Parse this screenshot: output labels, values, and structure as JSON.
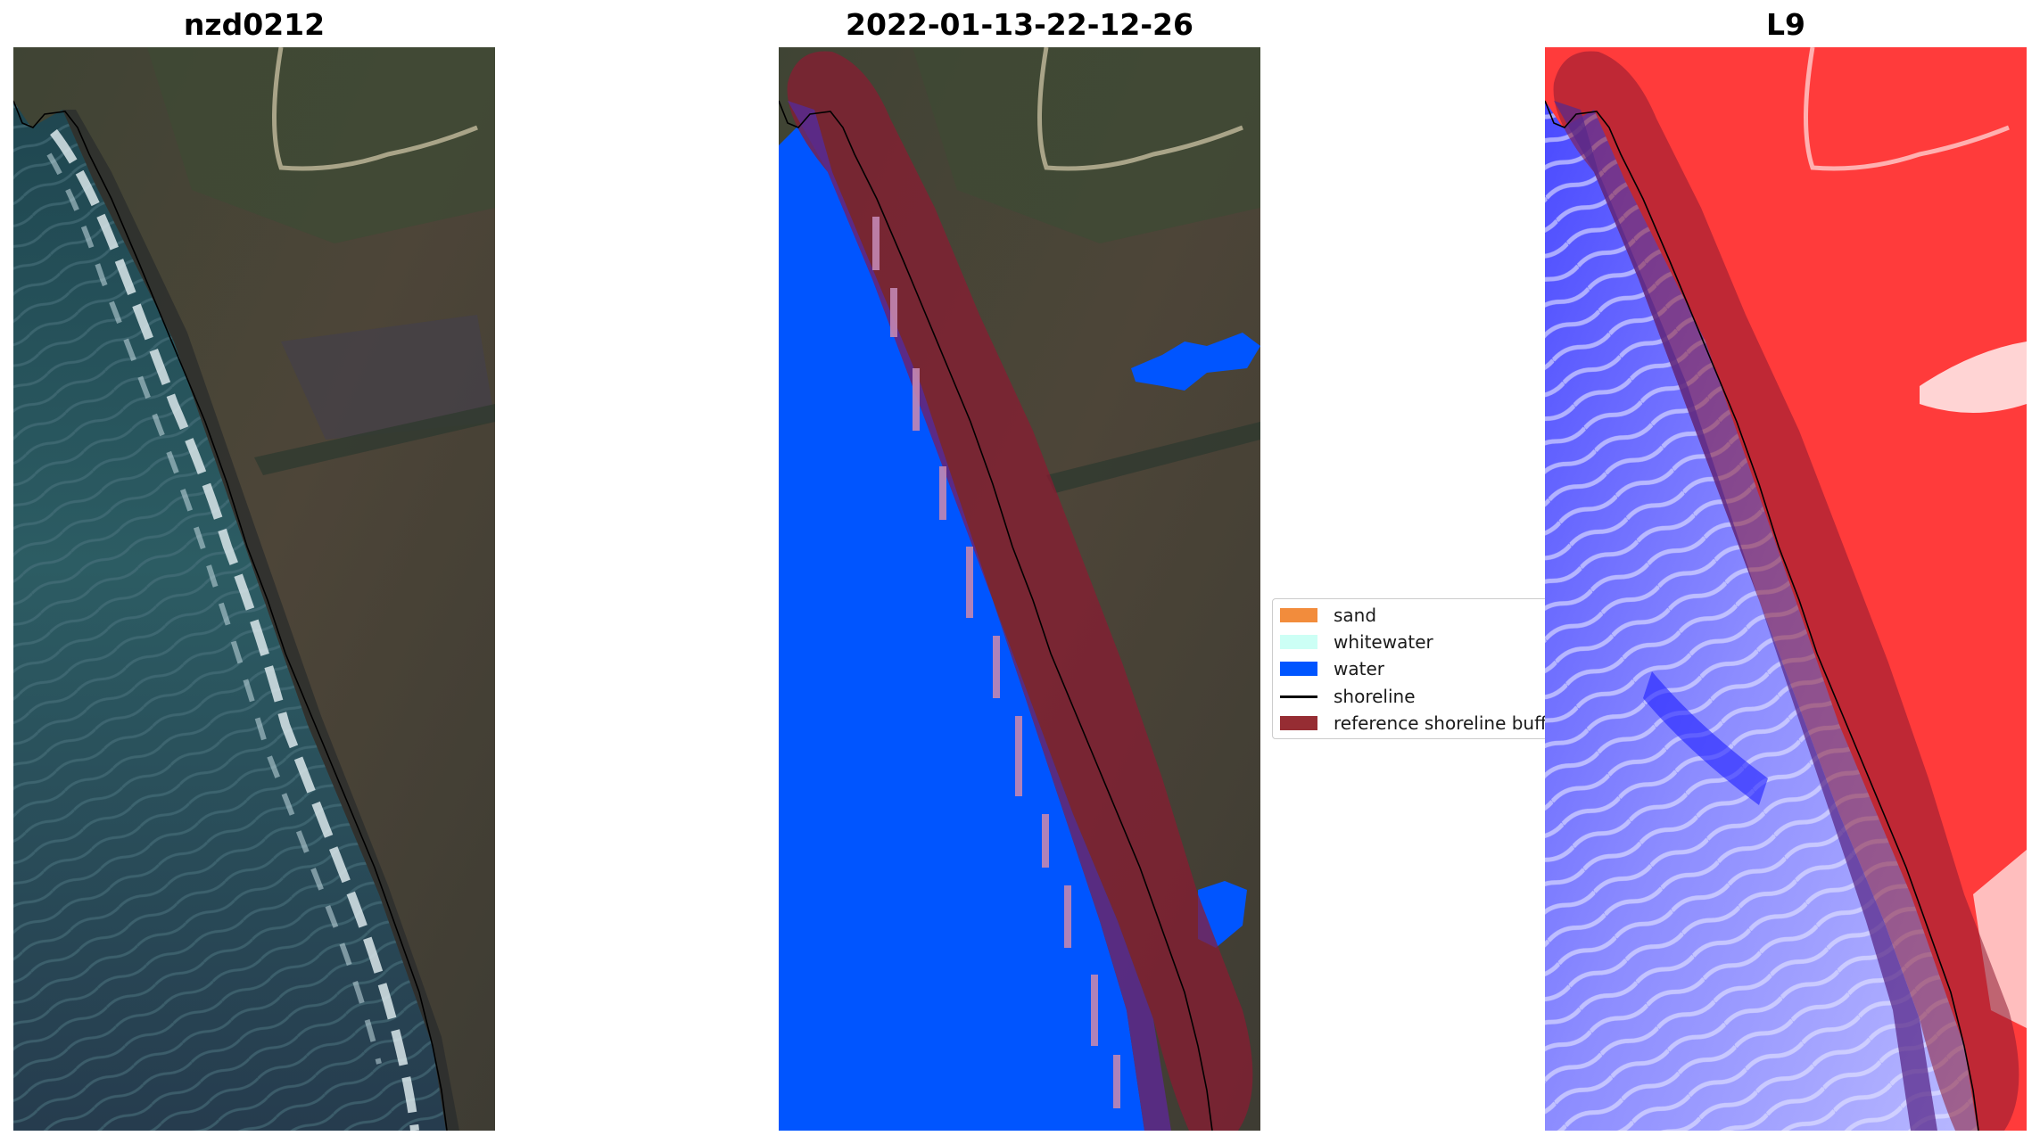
{
  "panels": {
    "left": {
      "title": "nzd0212",
      "content": "RGB satellite image of coastline"
    },
    "middle": {
      "title": "2022-01-13-22-12-26",
      "content": "classified image overlay"
    },
    "right": {
      "title": "L9",
      "content": "water index image (red-white-blue)"
    }
  },
  "legend": {
    "items": [
      {
        "label": "sand",
        "color": "#f28c3c",
        "kind": "patch"
      },
      {
        "label": "whitewater",
        "color": "#ccfff5",
        "kind": "patch"
      },
      {
        "label": "water",
        "color": "#0055ff",
        "kind": "patch"
      },
      {
        "label": "shoreline",
        "color": "#000000",
        "kind": "line"
      },
      {
        "label": "reference shoreline buffer",
        "color": "#962d33",
        "kind": "patch"
      }
    ]
  },
  "colors": {
    "water_class": "#0055ff",
    "buffer": "#8b1a32",
    "sand_class": "#f28c3c",
    "index_land": "#ff3b3b",
    "index_water": "#3a3aff"
  }
}
